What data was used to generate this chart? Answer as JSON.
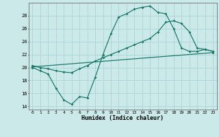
{
  "bg_color": "#cce9e9",
  "grid_color": "#aad4d4",
  "line_color": "#1a7a6a",
  "xlabel": "Humidex (Indice chaleur)",
  "xlim": [
    -0.5,
    23.5
  ],
  "ylim": [
    13.5,
    30.0
  ],
  "yticks": [
    14,
    16,
    18,
    20,
    22,
    24,
    26,
    28
  ],
  "xticks": [
    0,
    1,
    2,
    3,
    4,
    5,
    6,
    7,
    8,
    9,
    10,
    11,
    12,
    13,
    14,
    15,
    16,
    17,
    18,
    19,
    20,
    21,
    22,
    23
  ],
  "line1_x": [
    0,
    1,
    2,
    3,
    4,
    5,
    6,
    7,
    8,
    9,
    10,
    11,
    12,
    13,
    14,
    15,
    16,
    17,
    18,
    19,
    20,
    21,
    22,
    23
  ],
  "line1_y": [
    20.0,
    19.5,
    19.0,
    16.8,
    15.0,
    14.3,
    15.5,
    15.3,
    18.5,
    22.0,
    25.2,
    27.8,
    28.3,
    29.0,
    29.3,
    29.5,
    28.5,
    28.3,
    26.0,
    23.0,
    22.5,
    22.5,
    22.8,
    22.5
  ],
  "line2_x": [
    0,
    1,
    2,
    3,
    4,
    5,
    6,
    7,
    8,
    9,
    10,
    11,
    12,
    13,
    14,
    15,
    16,
    17,
    18,
    19,
    20,
    21,
    22,
    23
  ],
  "line2_y": [
    20.3,
    20.0,
    19.8,
    19.5,
    19.3,
    19.2,
    19.8,
    20.3,
    21.0,
    21.5,
    22.0,
    22.5,
    23.0,
    23.5,
    24.0,
    24.5,
    25.5,
    27.0,
    27.2,
    26.8,
    25.5,
    23.0,
    22.8,
    22.5
  ],
  "line3_x": [
    0,
    23
  ],
  "line3_y": [
    20.1,
    22.3
  ]
}
